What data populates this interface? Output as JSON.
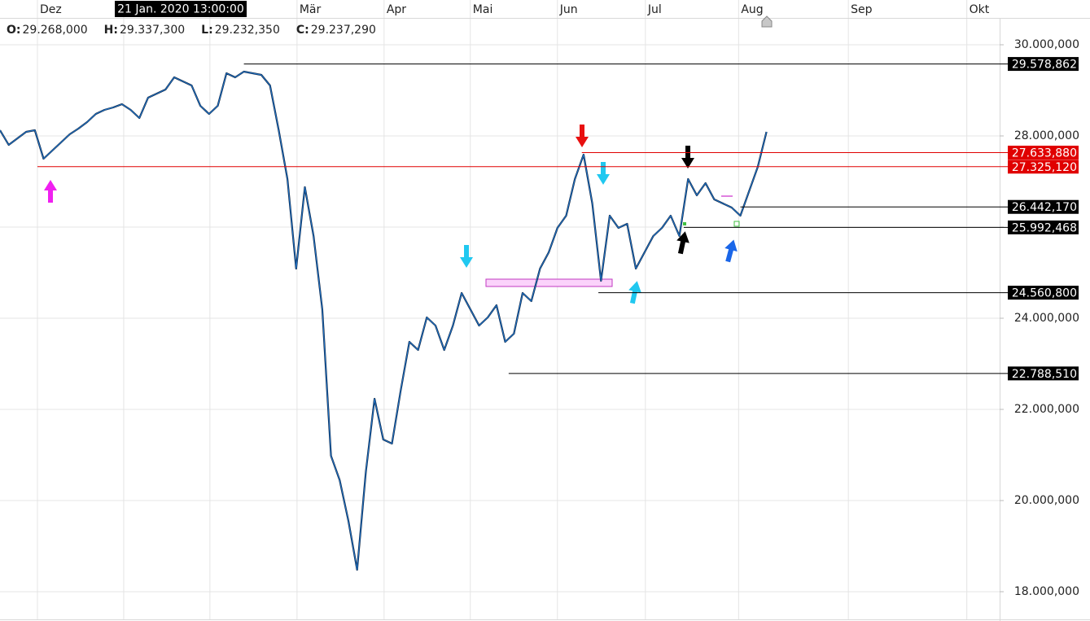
{
  "header": {
    "crosshair_label": "21 Jan. 2020 13:00:00",
    "ohlc": [
      {
        "key": "O:",
        "value": "29.268,000"
      },
      {
        "key": "H:",
        "value": "29.337,300"
      },
      {
        "key": "L:",
        "value": "29.232,350"
      },
      {
        "key": "C:",
        "value": "29.237,290"
      }
    ]
  },
  "chart_data": {
    "type": "line",
    "xlim": [
      0,
      114.77
    ],
    "xticks": [
      {
        "value": 4.3,
        "label": "Dez"
      },
      {
        "value": 14.2,
        "label": null
      },
      {
        "value": 24.1,
        "label": null
      },
      {
        "value": 34.1,
        "label": "Mär"
      },
      {
        "value": 44.1,
        "label": "Apr"
      },
      {
        "value": 54.0,
        "label": "Mai"
      },
      {
        "value": 64.0,
        "label": "Jun"
      },
      {
        "value": 74.1,
        "label": "Jul"
      },
      {
        "value": 84.8,
        "label": "Aug"
      },
      {
        "value": 97.4,
        "label": "Sep"
      },
      {
        "value": 111.0,
        "label": "Okt"
      }
    ],
    "ylim": [
      17357,
      30982
    ],
    "yticks": [
      {
        "value": 30000,
        "label": "30.000,000"
      },
      {
        "value": 28000,
        "label": "28.000,000"
      },
      {
        "value": 26000,
        "label": null
      },
      {
        "value": 24000,
        "label": "24.000,000"
      },
      {
        "value": 22000,
        "label": "22.000,000"
      },
      {
        "value": 20000,
        "label": "20.000,000"
      },
      {
        "value": 18000,
        "label": "18.000,000"
      }
    ],
    "grid": true,
    "series": [
      {
        "color": "#1f6fc0",
        "x": [
          0,
          1,
          2,
          3,
          4,
          5,
          6,
          7,
          8,
          9,
          10,
          11,
          12,
          13,
          14,
          15,
          16,
          17,
          18,
          19,
          20,
          21,
          22,
          23,
          24,
          25,
          26,
          27,
          28,
          29,
          30,
          31,
          32,
          33,
          34,
          35,
          36,
          37,
          38,
          39,
          40,
          41,
          42,
          43,
          44,
          45,
          46,
          47,
          48,
          49,
          50,
          51,
          52,
          53,
          54,
          55,
          56,
          57,
          58,
          59,
          60,
          61,
          62,
          63,
          64,
          65,
          66,
          67,
          68,
          69,
          70,
          71,
          72,
          73,
          74,
          75,
          76,
          77,
          78,
          79,
          80,
          81,
          82,
          83,
          84,
          85,
          86,
          87,
          88
        ],
        "values": [
          28125,
          27804,
          27946,
          28089,
          28125,
          27500,
          27679,
          27857,
          28036,
          28161,
          28304,
          28482,
          28571,
          28625,
          28696,
          28571,
          28393,
          28839,
          28929,
          29018,
          29286,
          29196,
          29107,
          28661,
          28482,
          28661,
          29375,
          29286,
          29411,
          29375,
          29339,
          29107,
          28125,
          27054,
          25089,
          26875,
          25804,
          24196,
          20982,
          20446,
          19554,
          18482,
          20625,
          22232,
          21339,
          21250,
          22411,
          23482,
          23304,
          24018,
          23839,
          23304,
          23839,
          24554,
          24196,
          23839,
          24018,
          24286,
          23482,
          23661,
          24554,
          24375,
          25089,
          25446,
          25982,
          26250,
          27054,
          27589,
          26518,
          24821,
          26250,
          25982,
          26071,
          25089,
          25446,
          25804,
          25982,
          26250,
          25804,
          27054,
          26696,
          26964,
          26607,
          26518,
          26429,
          26250,
          26786,
          27321,
          28089
        ]
      }
    ],
    "levels": [
      {
        "value": 29578.862,
        "label": "29.578,862",
        "color": "#000000",
        "from": 28
      },
      {
        "value": 27633.88,
        "label": "27.633,880",
        "color": "#e00000",
        "from": 66.8
      },
      {
        "value": 27325.12,
        "label": "27.325,120",
        "color": "#e00000",
        "from": 4.3
      },
      {
        "value": 26442.17,
        "label": "26.442,170",
        "color": "#000000",
        "from": 85
      },
      {
        "value": 25992.468,
        "label": "25.992,468",
        "color": "#000000",
        "from": 78.5
      },
      {
        "value": 24560.8,
        "label": "24.560,800",
        "color": "#000000",
        "from": 68.7
      },
      {
        "value": 22788.51,
        "label": "22.788,510",
        "color": "#000000",
        "from": 58.4
      }
    ]
  }
}
